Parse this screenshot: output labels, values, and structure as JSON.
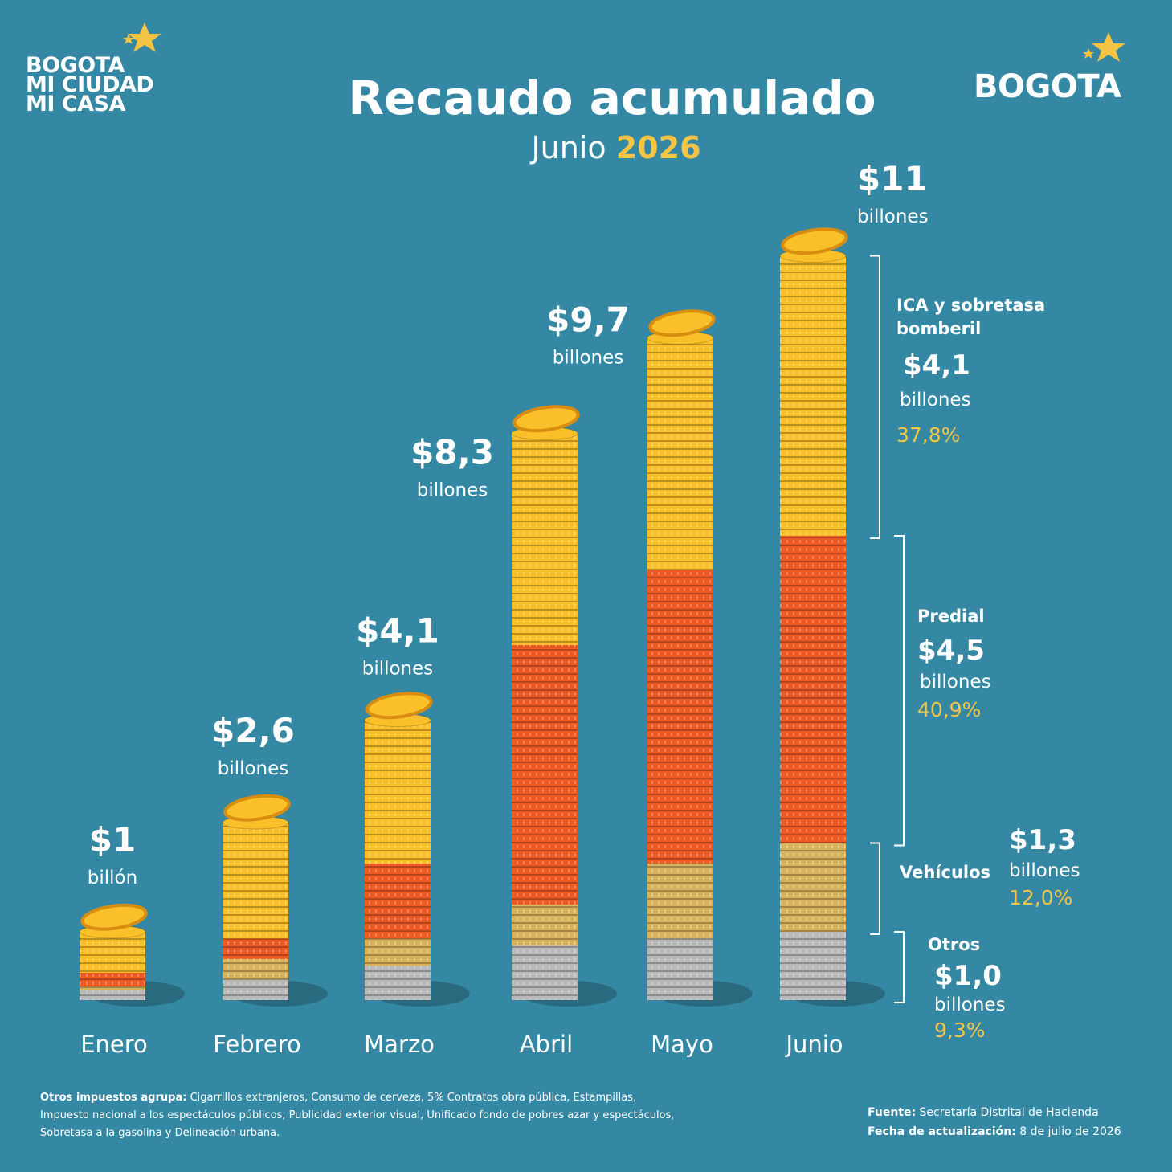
{
  "logo_left": {
    "line1": "BOGOTA",
    "line2": "MI CIUDAD",
    "line3": "MI CASA"
  },
  "logo_right": "BOGOTA",
  "chart_data": {
    "type": "bar",
    "stacked": true,
    "title": "Recaudo acumulado",
    "subtitle": {
      "month": "Junio",
      "year": "2026"
    },
    "categories": [
      "Enero",
      "Febrero",
      "Marzo",
      "Abril",
      "Mayo",
      "Junio"
    ],
    "series": [
      {
        "name": "Otros",
        "color": "#b9b9b9",
        "values": [
          0.15,
          0.3,
          0.5,
          0.8,
          0.9,
          1.0
        ],
        "value_label": "$1,0",
        "unit": "billones",
        "share": "9,3%"
      },
      {
        "name": "Vehículos",
        "color": "#d8b35e",
        "values": [
          0.05,
          0.3,
          0.4,
          0.6,
          1.1,
          1.3
        ],
        "value_label": "$1,3",
        "unit": "billones",
        "share": "12,0%"
      },
      {
        "name": "Predial",
        "color": "#ee5a24",
        "values": [
          0.2,
          0.3,
          1.1,
          3.8,
          4.3,
          4.5
        ],
        "value_label": "$4,5",
        "unit": "billones",
        "share": "40,9%"
      },
      {
        "name": "ICA y sobretasa bomberil",
        "color": "#f9c02a",
        "values": [
          0.6,
          1.7,
          2.1,
          3.1,
          3.4,
          4.1
        ],
        "value_label": "$4,1",
        "unit": "billones",
        "share": "37,8%"
      }
    ],
    "totals": [
      1,
      2.6,
      4.1,
      8.3,
      9.7,
      11
    ],
    "value_labels": [
      "$1",
      "$2,6",
      "$4,1",
      "$8,3",
      "$9,7",
      "$11"
    ],
    "total_units": [
      "billón",
      "billones",
      "billones",
      "billones",
      "billones",
      "billones"
    ]
  },
  "footnote": {
    "lead": "Otros impuestos agrupa:",
    "text": "Cigarrillos extranjeros, Consumo de cerveza, 5% Contratos obra pública, Estampillas, Impuesto nacional a los espectáculos públicos, Publicidad exterior visual, Unificado fondo de pobres azar y espectáculos, Sobretasa a la gasolina y Delineación urbana."
  },
  "source": {
    "lead": "Fuente:",
    "text": "Secretaría Distrital de Hacienda"
  },
  "updated": {
    "lead": "Fecha de actualización:",
    "text": "8 de julio de 2026"
  }
}
